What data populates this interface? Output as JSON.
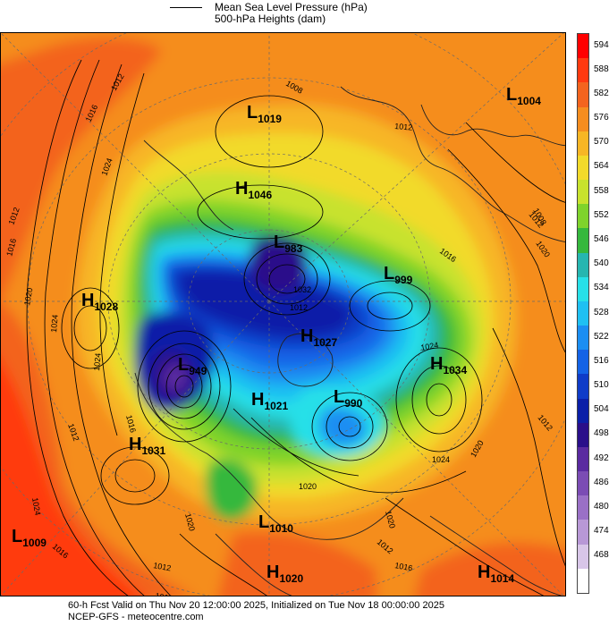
{
  "legend": {
    "mslp_label": "Mean Sea Level Pressure (hPa)",
    "heights_label": "500-hPa Heights (dam)"
  },
  "colorbar": {
    "levels": [
      {
        "value": "594",
        "color": "#ff0000"
      },
      {
        "value": "588",
        "color": "#ff3a10"
      },
      {
        "value": "582",
        "color": "#f3641e"
      },
      {
        "value": "576",
        "color": "#f58d1f"
      },
      {
        "value": "570",
        "color": "#f7b625"
      },
      {
        "value": "564",
        "color": "#f2da2a"
      },
      {
        "value": "558",
        "color": "#c8e22e"
      },
      {
        "value": "552",
        "color": "#7fd32c"
      },
      {
        "value": "546",
        "color": "#35b83d"
      },
      {
        "value": "540",
        "color": "#26b6b0"
      },
      {
        "value": "534",
        "color": "#27e0e8"
      },
      {
        "value": "528",
        "color": "#1fc0f2"
      },
      {
        "value": "522",
        "color": "#1b8ef2"
      },
      {
        "value": "516",
        "color": "#1463e6"
      },
      {
        "value": "510",
        "color": "#0f3cc8"
      },
      {
        "value": "504",
        "color": "#0b1fa8"
      },
      {
        "value": "498",
        "color": "#2a0f8a"
      },
      {
        "value": "492",
        "color": "#5a2aa0"
      },
      {
        "value": "486",
        "color": "#7b4cb4"
      },
      {
        "value": "480",
        "color": "#9a70c6"
      },
      {
        "value": "474",
        "color": "#b898d6"
      },
      {
        "value": "468",
        "color": "#d8c6e8"
      },
      {
        "value": "",
        "color": "#ffffff"
      }
    ]
  },
  "pressure_systems": [
    {
      "type": "L",
      "value": "1019",
      "name": "low-arctic-north"
    },
    {
      "type": "L",
      "value": "1004",
      "name": "low-northeast"
    },
    {
      "type": "H",
      "value": "1046",
      "name": "high-siberia"
    },
    {
      "type": "L",
      "value": "983",
      "name": "low-pole"
    },
    {
      "type": "L",
      "value": "999",
      "name": "low-north-atlantic"
    },
    {
      "type": "H",
      "value": "1028",
      "name": "high-west-pacific"
    },
    {
      "type": "H",
      "value": "1027",
      "name": "high-greenland"
    },
    {
      "type": "L",
      "value": "949",
      "name": "low-canada-deep"
    },
    {
      "type": "H",
      "value": "1034",
      "name": "high-eastern"
    },
    {
      "type": "H",
      "value": "1021",
      "name": "high-central"
    },
    {
      "type": "L",
      "value": "990",
      "name": "low-east-central"
    },
    {
      "type": "H",
      "value": "1031",
      "name": "high-pacific"
    },
    {
      "type": "L",
      "value": "1010",
      "name": "low-south"
    },
    {
      "type": "L",
      "value": "1009",
      "name": "low-southwest"
    },
    {
      "type": "H",
      "value": "1020",
      "name": "high-south"
    },
    {
      "type": "H",
      "value": "1014",
      "name": "high-southeast"
    }
  ],
  "isobar_labels": [
    "1012",
    "1016",
    "1024",
    "1012",
    "1016",
    "1020",
    "1024",
    "1024",
    "1012",
    "1016",
    "1020",
    "1024",
    "1016",
    "1012",
    "1016",
    "1008",
    "1012",
    "1012",
    "1020",
    "1016",
    "1024",
    "1020",
    "1012",
    "1008",
    "1032",
    "1012",
    "1020",
    "1024",
    "1012",
    "1016",
    "1020"
  ],
  "footer": {
    "line1": "60-h Fcst Valid on Thu Nov 20 12:00:00 2025, Initialized on Tue Nov 18 00:00:00 2025",
    "line2": "NCEP-GFS  -  meteocentre.com"
  }
}
